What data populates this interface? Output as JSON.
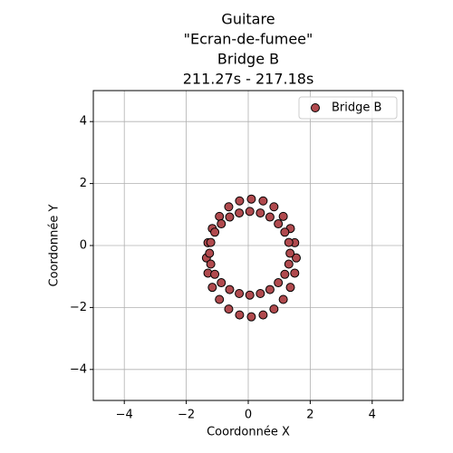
{
  "chart_data": {
    "type": "scatter",
    "title": [
      "Guitare",
      "\"Ecran-de-fumee\"",
      "Bridge B",
      "211.27s - 217.18s"
    ],
    "xlabel": "Coordonnée X",
    "ylabel": "Coordonnée Y",
    "xlim": [
      -5,
      5
    ],
    "ylim": [
      -5,
      5
    ],
    "xticks": [
      {
        "value": -4,
        "label": "−4"
      },
      {
        "value": -2,
        "label": "−2"
      },
      0,
      2,
      4
    ],
    "yticks": [
      {
        "value": -4,
        "label": "−4"
      },
      {
        "value": -2,
        "label": "−2"
      },
      0,
      2,
      4
    ],
    "grid": true,
    "legend": "upper right",
    "series": [
      {
        "name": "Bridge B",
        "color": "#b04a4e",
        "x": [
          1.55,
          1.5,
          1.36,
          1.13,
          0.83,
          0.48,
          0.1,
          -0.28,
          -0.63,
          -0.93,
          -1.16,
          -1.3,
          -1.35,
          -1.3,
          -1.16,
          -0.93,
          -0.63,
          -0.28,
          0.1,
          0.48,
          0.83,
          1.13,
          1.36,
          1.5,
          1.35,
          1.31,
          1.18,
          0.97,
          0.7,
          0.39,
          0.05,
          -0.29,
          -0.6,
          -0.87,
          -1.08,
          -1.21,
          -1.25,
          -1.21,
          -1.08,
          -0.87,
          -0.6,
          -0.29,
          0.05,
          0.39,
          0.7,
          0.97,
          1.18,
          1.31
        ],
        "y": [
          -0.4,
          0.09,
          0.55,
          0.94,
          1.25,
          1.44,
          1.5,
          1.44,
          1.25,
          0.94,
          0.55,
          0.09,
          -0.4,
          -0.89,
          -1.35,
          -1.74,
          -2.05,
          -2.24,
          -2.3,
          -2.24,
          -2.05,
          -1.74,
          -1.35,
          -0.89,
          -0.25,
          0.1,
          0.43,
          0.7,
          0.92,
          1.05,
          1.1,
          1.05,
          0.92,
          0.7,
          0.43,
          0.1,
          -0.25,
          -0.6,
          -0.93,
          -1.2,
          -1.42,
          -1.55,
          -1.6,
          -1.55,
          -1.42,
          -1.2,
          -0.93,
          -0.6
        ]
      }
    ]
  }
}
